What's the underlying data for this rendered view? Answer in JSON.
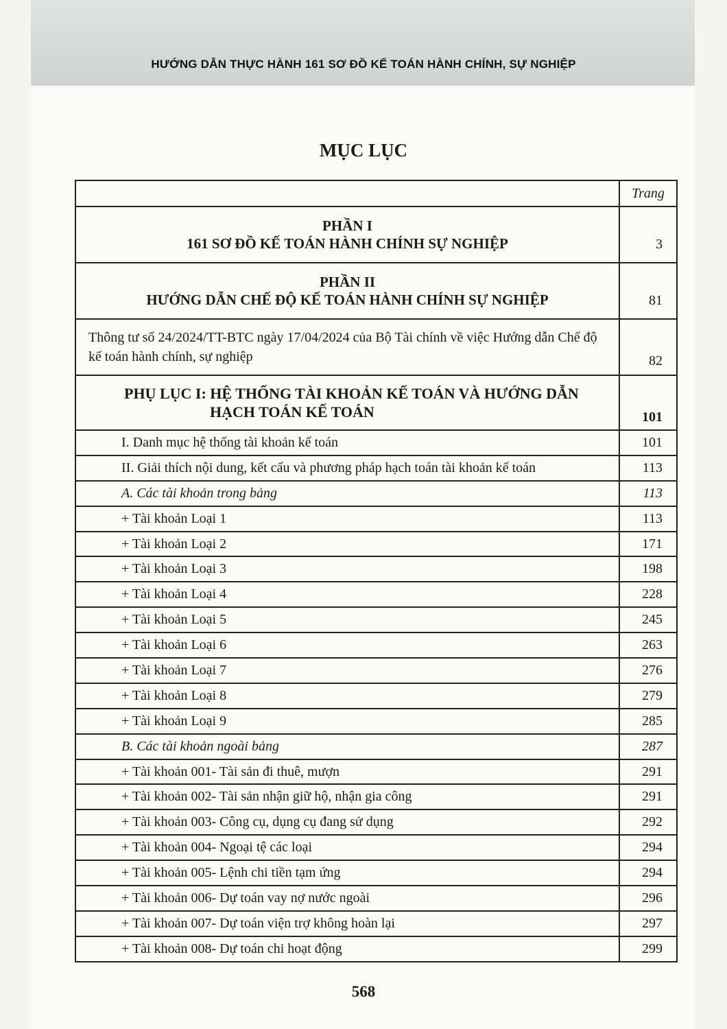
{
  "running_header": "HƯỚNG DẪN THỰC HÀNH 161 SƠ ĐỒ KẾ TOÁN HÀNH CHÍNH, SỰ NGHIỆP",
  "title": "MỤC LỤC",
  "table": {
    "page_col_header": "Trang",
    "parts": [
      {
        "line1": "PHẦN I",
        "line2": "161 SƠ ĐỒ KẾ TOÁN HÀNH CHÍNH SỰ NGHIỆP",
        "page": "3"
      },
      {
        "line1": "PHẦN II",
        "line2": "HƯỚNG DẪN CHẾ ĐỘ KẾ TOÁN HÀNH CHÍNH SỰ NGHIỆP",
        "page": "81"
      }
    ],
    "circular": {
      "text": "Thông tư số 24/2024/TT-BTC ngày 17/04/2024 của Bộ Tài chính về việc Hướng dẫn Chế độ kế toán hành chính, sự nghiệp",
      "page": "82"
    },
    "appendix": {
      "line1": "PHỤ LỤC I: HỆ THỐNG TÀI KHOẢN KẾ TOÁN VÀ HƯỚNG DẪN",
      "line2": "HẠCH TOÁN KẾ TOÁN",
      "page": "101"
    },
    "rows": [
      {
        "text": "I. Danh mục hệ thống tài khoản kế toán",
        "page": "101",
        "italic": false
      },
      {
        "text": "II. Giải thích nội dung, kết cấu và phương pháp hạch toán tài khoản kế toán",
        "page": "113",
        "italic": false
      },
      {
        "text": "A. Các tài khoản trong bảng",
        "page": "113",
        "italic": true
      },
      {
        "text": "+ Tài khoản Loại 1",
        "page": "113",
        "italic": false
      },
      {
        "text": "+ Tài khoản Loại 2",
        "page": "171",
        "italic": false
      },
      {
        "text": "+ Tài khoản Loại 3",
        "page": "198",
        "italic": false
      },
      {
        "text": "+ Tài khoản Loại 4",
        "page": "228",
        "italic": false
      },
      {
        "text": "+ Tài khoản Loại 5",
        "page": "245",
        "italic": false
      },
      {
        "text": "+ Tài khoản Loại 6",
        "page": "263",
        "italic": false
      },
      {
        "text": "+ Tài khoản Loại 7",
        "page": "276",
        "italic": false
      },
      {
        "text": "+ Tài khoản Loại 8",
        "page": "279",
        "italic": false
      },
      {
        "text": "+ Tài khoản Loại 9",
        "page": "285",
        "italic": false
      },
      {
        "text": "B. Các tài khoản ngoài bảng",
        "page": "287",
        "italic": true
      },
      {
        "text": "+ Tài khoản 001- Tài sản đi thuê, mượn",
        "page": "291",
        "italic": false
      },
      {
        "text": "+ Tài khoản 002- Tài sản nhận giữ hộ, nhận gia công",
        "page": "291",
        "italic": false
      },
      {
        "text": "+ Tài khoản 003- Công cụ, dụng cụ đang sử dụng",
        "page": "292",
        "italic": false
      },
      {
        "text": "+ Tài khoản 004- Ngoại tệ các loại",
        "page": "294",
        "italic": false
      },
      {
        "text": "+ Tài khoản 005- Lệnh chi tiền tạm ứng",
        "page": "294",
        "italic": false
      },
      {
        "text": "+ Tài khoản 006- Dự toán vay nợ nước ngoài",
        "page": "296",
        "italic": false
      },
      {
        "text": "+ Tài khoản 007- Dự toán viện trợ không hoàn lại",
        "page": "297",
        "italic": false
      },
      {
        "text": "+ Tài khoản 008- Dự toán chi hoạt động",
        "page": "299",
        "italic": false
      }
    ]
  },
  "page_number": "568"
}
